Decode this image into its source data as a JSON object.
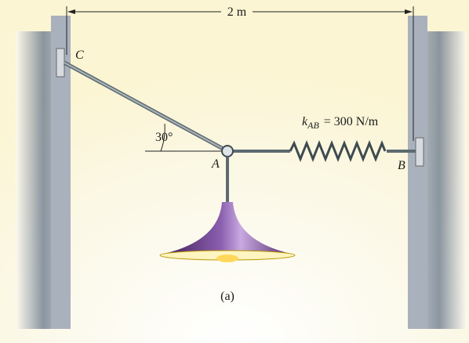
{
  "dimension": {
    "label": "2 m"
  },
  "points": {
    "C": "C",
    "A": "A",
    "B": "B"
  },
  "angle": {
    "label": "30°"
  },
  "spring": {
    "symbol": "k",
    "subscript": "AB",
    "value": "= 300 N/m"
  },
  "caption": "(a)"
}
